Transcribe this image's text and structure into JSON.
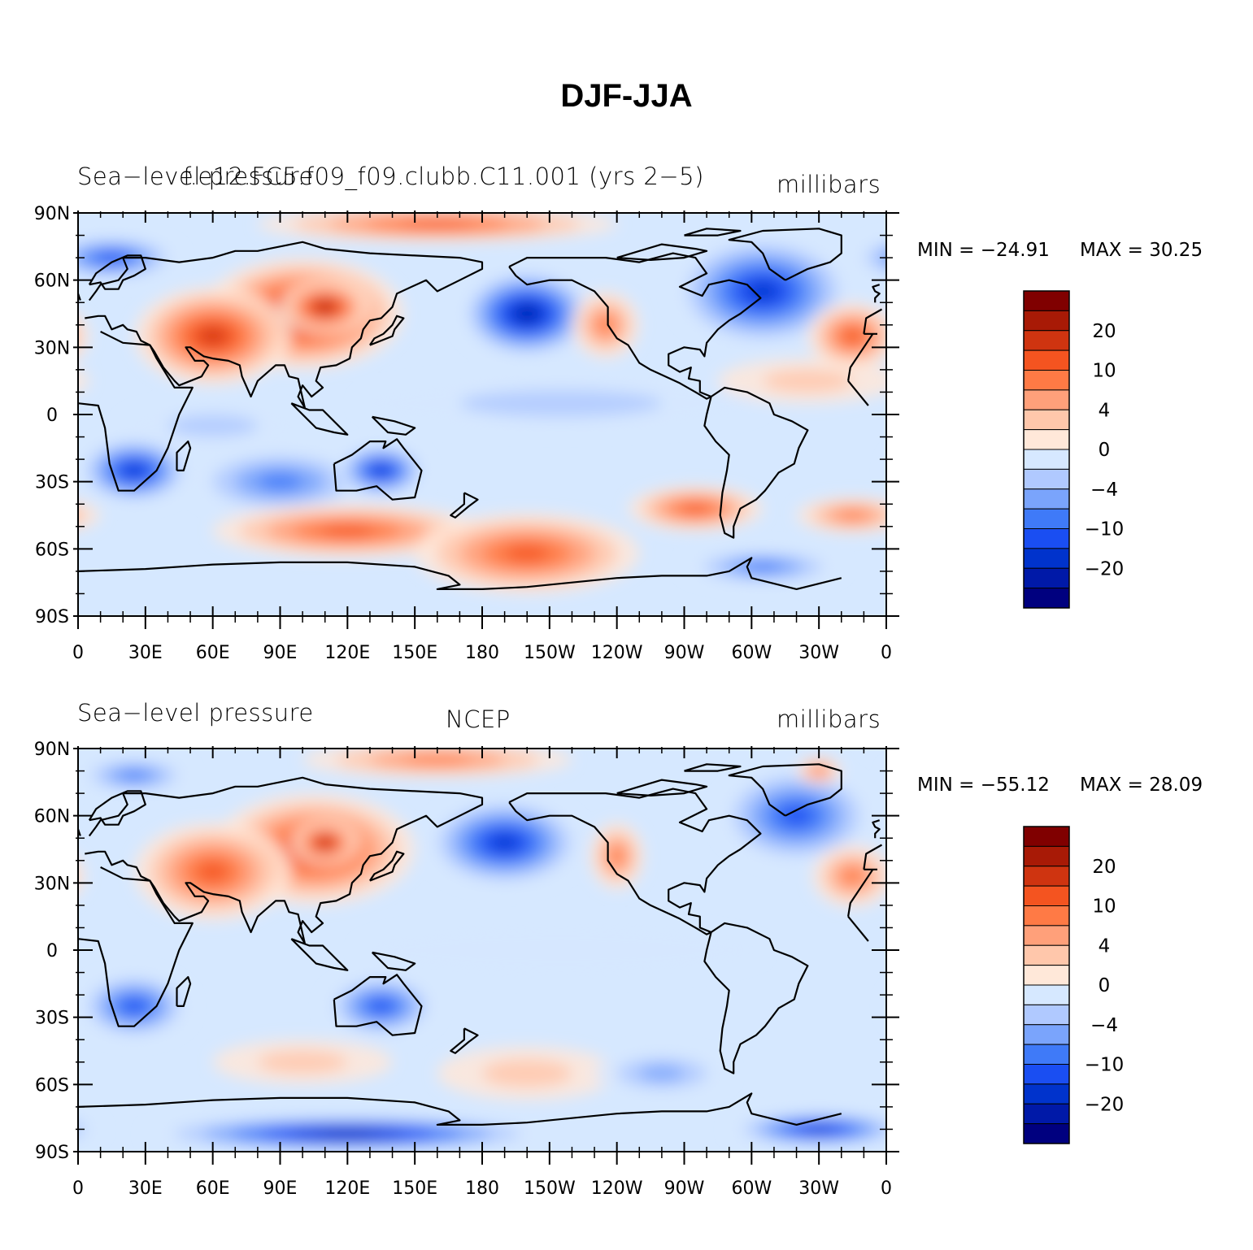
{
  "title": "DJF-JJA",
  "colors": {
    "levels": [
      "#00007f",
      "#0019a8",
      "#0033cc",
      "#1a4ef2",
      "#3f7af8",
      "#7aa4fc",
      "#b0c9ff",
      "#d6e8ff",
      "#ffe8d9",
      "#ffc7ab",
      "#ffa07a",
      "#ff7a45",
      "#f45420",
      "#cf3410",
      "#a81a06",
      "#800000"
    ],
    "coast": "#000000"
  },
  "axes": {
    "lat_ticks": [
      "90N",
      "60N",
      "30N",
      "0",
      "30S",
      "60S",
      "90S"
    ],
    "lon_ticks": [
      "0",
      "30E",
      "60E",
      "90E",
      "120E",
      "150E",
      "180",
      "150W",
      "120W",
      "90W",
      "60W",
      "30W",
      "0"
    ]
  },
  "colorbar": {
    "labels": [
      "20",
      "10",
      "4",
      "0",
      "−4",
      "−10",
      "−20"
    ]
  },
  "panels": [
    {
      "left_title": "Sea−level pressure",
      "center_title": "f.e12.FC5.f09_f09.clubb.C11.001 (yrs 2−5)",
      "right_title": "millibars",
      "min_label": "MIN = −24.91",
      "max_label": "MAX =   30.25",
      "stats": {
        "min": -24.91,
        "max": 30.25
      }
    },
    {
      "left_title": "Sea−level pressure",
      "center_title": "NCEP",
      "right_title": "millibars",
      "min_label": "MIN = −55.12",
      "max_label": "MAX =   28.09",
      "stats": {
        "min": -55.12,
        "max": 28.09
      }
    }
  ]
}
